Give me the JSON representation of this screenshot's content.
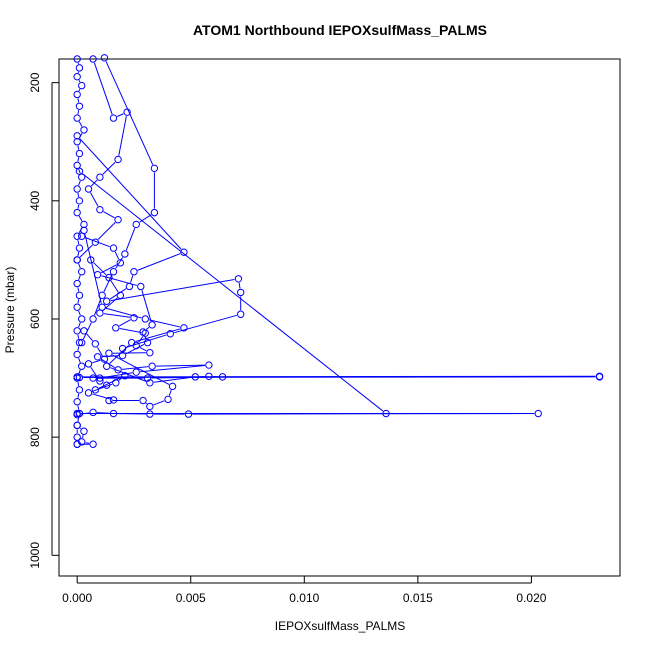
{
  "chart_data": {
    "type": "line",
    "title": "ATOM1 Northbound IEPOXsulfMass_PALMS",
    "xlabel": "IEPOXsulfMass_PALMS",
    "ylabel": "Pressure (mbar)",
    "x_ticks": [
      "0.000",
      "0.005",
      "0.010",
      "0.015",
      "0.020"
    ],
    "y_ticks": [
      "200",
      "400",
      "600",
      "800",
      "1000"
    ],
    "xlim": [
      -0.0008,
      0.0239
    ],
    "ylim": [
      1035,
      160
    ],
    "y_reversed": true,
    "grid": false,
    "series_color": "#0000ff",
    "series": [
      {
        "values": [
          [
            0.0,
            160
          ],
          [
            0.0001,
            175
          ],
          [
            0.0,
            190
          ],
          [
            0.0002,
            205
          ],
          [
            0.0,
            220
          ],
          [
            0.0001,
            240
          ],
          [
            0.0,
            260
          ],
          [
            0.0003,
            280
          ],
          [
            0.0,
            300
          ],
          [
            0.0001,
            320
          ],
          [
            0.0,
            340
          ],
          [
            0.0002,
            360
          ],
          [
            0.0,
            380
          ],
          [
            0.0001,
            400
          ],
          [
            0.0,
            420
          ],
          [
            0.0003,
            440
          ],
          [
            0.0,
            460
          ],
          [
            0.0001,
            480
          ],
          [
            0.0,
            500
          ],
          [
            0.0002,
            520
          ],
          [
            0.0,
            540
          ],
          [
            0.0001,
            560
          ],
          [
            0.0,
            580
          ],
          [
            0.0002,
            600
          ],
          [
            0.0,
            620
          ],
          [
            0.0001,
            640
          ],
          [
            0.0,
            660
          ],
          [
            0.0002,
            680
          ],
          [
            0.0,
            700
          ],
          [
            0.0001,
            720
          ],
          [
            0.0,
            740
          ],
          [
            0.0001,
            760
          ],
          [
            0.0,
            780
          ],
          [
            0.0,
            800
          ],
          [
            0.0,
            812
          ]
        ]
      },
      {
        "values": [
          [
            0.0007,
            160
          ],
          [
            0.0016,
            260
          ],
          [
            0.0022,
            250
          ],
          [
            0.0018,
            330
          ],
          [
            0.001,
            360
          ],
          [
            0.0005,
            380
          ],
          [
            0.001,
            415
          ],
          [
            0.0018,
            432
          ],
          [
            0.0008,
            470
          ],
          [
            0.0,
            500
          ]
        ]
      },
      {
        "values": [
          [
            0.0012,
            158
          ],
          [
            0.0034,
            345
          ],
          [
            0.0034,
            420
          ],
          [
            0.0026,
            440
          ],
          [
            0.0021,
            490
          ],
          [
            0.0016,
            520
          ],
          [
            0.0011,
            560
          ],
          [
            0.0007,
            600
          ],
          [
            0.0002,
            640
          ]
        ]
      },
      {
        "values": [
          [
            0.0,
            290
          ],
          [
            0.0047,
            487
          ],
          [
            0.0025,
            520
          ],
          [
            0.0023,
            545
          ],
          [
            0.0013,
            570
          ],
          [
            0.0071,
            532
          ],
          [
            0.0072,
            555
          ],
          [
            0.0072,
            592
          ],
          [
            0.0041,
            625
          ],
          [
            0.002,
            650
          ]
        ]
      },
      {
        "values": [
          [
            0.0003,
            450
          ],
          [
            0.0011,
            580
          ],
          [
            0.003,
            600
          ],
          [
            0.0047,
            615
          ],
          [
            0.0024,
            640
          ],
          [
            0.0013,
            680
          ],
          [
            0.0032,
            708
          ],
          [
            0.0052,
            698
          ],
          [
            0.0058,
            697
          ],
          [
            0.0064,
            698
          ],
          [
            0.0031,
            700
          ],
          [
            0.0007,
            700
          ]
        ]
      },
      {
        "values": [
          [
            0.0001,
            350
          ],
          [
            0.0136,
            760
          ],
          [
            0.0001,
            760
          ]
        ]
      },
      {
        "values": [
          [
            0.0,
            698
          ],
          [
            0.023,
            697
          ],
          [
            0.023,
            698
          ],
          [
            0.0001,
            699
          ]
        ]
      },
      {
        "values": [
          [
            0.0,
            760
          ],
          [
            0.0203,
            760
          ],
          [
            0.0049,
            761
          ],
          [
            0.0032,
            761
          ],
          [
            0.0016,
            760
          ],
          [
            0.0007,
            758
          ],
          [
            0.0,
            762
          ]
        ]
      },
      {
        "values": [
          [
            0.0002,
            460
          ],
          [
            0.0016,
            480
          ],
          [
            0.0019,
            505
          ],
          [
            0.0009,
            525
          ],
          [
            0.0028,
            545
          ],
          [
            0.0033,
            610
          ],
          [
            0.0029,
            622
          ],
          [
            0.0031,
            640
          ],
          [
            0.002,
            662
          ],
          [
            0.0009,
            664
          ],
          [
            0.0018,
            686
          ],
          [
            0.0033,
            680
          ],
          [
            0.0058,
            678
          ],
          [
            0.0026,
            690
          ],
          [
            0.001,
            700
          ]
        ]
      },
      {
        "values": [
          [
            0.0006,
            500
          ],
          [
            0.0014,
            530
          ],
          [
            0.0019,
            560
          ],
          [
            0.001,
            590
          ],
          [
            0.0025,
            598
          ],
          [
            0.0017,
            615
          ],
          [
            0.003,
            624
          ],
          [
            0.0026,
            645
          ],
          [
            0.0032,
            657
          ],
          [
            0.0014,
            658
          ],
          [
            0.0042,
            714
          ],
          [
            0.004,
            736
          ],
          [
            0.0032,
            748
          ],
          [
            0.0029,
            738
          ],
          [
            0.0014,
            738
          ]
        ]
      },
      {
        "values": [
          [
            0.0003,
            620
          ],
          [
            0.0008,
            642
          ],
          [
            0.0012,
            668
          ],
          [
            0.0005,
            676
          ],
          [
            0.001,
            705
          ],
          [
            0.0013,
            712
          ],
          [
            0.0008,
            720
          ],
          [
            0.0021,
            696
          ],
          [
            0.0017,
            708
          ],
          [
            0.0005,
            725
          ],
          [
            0.0016,
            737
          ]
        ]
      },
      {
        "values": [
          [
            0.0,
            780
          ],
          [
            0.0003,
            790
          ],
          [
            0.0002,
            808
          ],
          [
            0.0007,
            812
          ],
          [
            0.0,
            812
          ]
        ]
      }
    ]
  }
}
